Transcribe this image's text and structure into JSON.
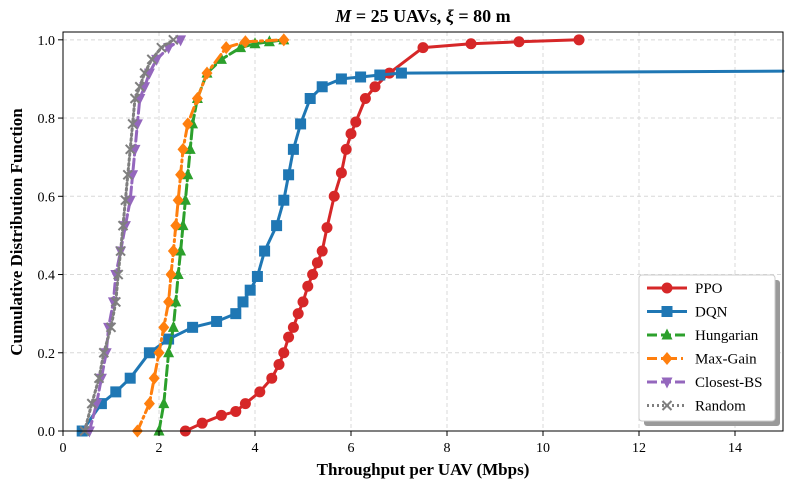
{
  "chart_data": {
    "type": "line",
    "title_math": "M",
    "title_text": " = 25 UAVs, ",
    "title_math2": "ξ",
    "title_text2": " = 80 m",
    "xlabel": "Throughput per UAV (Mbps)",
    "ylabel": "Cumulative Distribution Function",
    "xlim": [
      0,
      15
    ],
    "ylim": [
      0,
      1.02
    ],
    "xticks": [
      "0",
      "2",
      "4",
      "6",
      "8",
      "10",
      "12",
      "14"
    ],
    "yticks": [
      "0.0",
      "0.2",
      "0.4",
      "0.6",
      "0.8",
      "1.0"
    ],
    "grid": true,
    "legend_position": "lower-right",
    "series": [
      {
        "name": "PPO",
        "color": "#d62728",
        "marker": "circle",
        "dash": "solid",
        "x": [
          2.55,
          2.9,
          3.3,
          3.6,
          3.8,
          4.1,
          4.35,
          4.5,
          4.6,
          4.7,
          4.8,
          4.9,
          5.0,
          5.1,
          5.2,
          5.3,
          5.4,
          5.5,
          5.65,
          5.8,
          5.9,
          6.0,
          6.1,
          6.3,
          6.5,
          6.8,
          7.5,
          8.5,
          9.5,
          10.75
        ],
        "y": [
          0.0,
          0.02,
          0.04,
          0.05,
          0.07,
          0.1,
          0.135,
          0.17,
          0.2,
          0.24,
          0.265,
          0.3,
          0.33,
          0.37,
          0.4,
          0.43,
          0.46,
          0.52,
          0.6,
          0.66,
          0.72,
          0.76,
          0.79,
          0.85,
          0.88,
          0.915,
          0.98,
          0.99,
          0.995,
          1.0
        ]
      },
      {
        "name": "DQN",
        "color": "#1f77b4",
        "marker": "square",
        "dash": "solid",
        "x": [
          0.4,
          0.8,
          1.1,
          1.4,
          1.8,
          2.2,
          2.7,
          3.2,
          3.6,
          3.75,
          3.9,
          4.05,
          4.2,
          4.45,
          4.6,
          4.7,
          4.8,
          4.95,
          5.15,
          5.4,
          5.8,
          6.2,
          6.6,
          7.05,
          15.0
        ],
        "y": [
          0.0,
          0.07,
          0.1,
          0.135,
          0.2,
          0.235,
          0.265,
          0.28,
          0.3,
          0.33,
          0.36,
          0.395,
          0.46,
          0.525,
          0.59,
          0.655,
          0.72,
          0.785,
          0.85,
          0.88,
          0.9,
          0.905,
          0.91,
          0.915,
          0.92
        ]
      },
      {
        "name": "Hungarian",
        "color": "#2ca02c",
        "marker": "triangle-up",
        "dash": "dashed",
        "x": [
          2.0,
          2.1,
          2.2,
          2.3,
          2.35,
          2.4,
          2.45,
          2.5,
          2.55,
          2.6,
          2.65,
          2.7,
          2.8,
          3.0,
          3.3,
          3.7,
          4.0,
          4.3,
          4.6
        ],
        "y": [
          0.0,
          0.07,
          0.2,
          0.265,
          0.33,
          0.4,
          0.46,
          0.525,
          0.59,
          0.655,
          0.72,
          0.785,
          0.85,
          0.915,
          0.95,
          0.98,
          0.99,
          0.995,
          1.0
        ]
      },
      {
        "name": "Max-Gain",
        "color": "#ff7f0e",
        "marker": "diamond",
        "dash": "dashdot",
        "x": [
          1.55,
          1.8,
          1.9,
          2.0,
          2.1,
          2.2,
          2.25,
          2.3,
          2.35,
          2.4,
          2.45,
          2.5,
          2.6,
          2.8,
          3.0,
          3.4,
          3.8,
          4.6
        ],
        "y": [
          0.0,
          0.07,
          0.135,
          0.2,
          0.265,
          0.33,
          0.4,
          0.46,
          0.525,
          0.59,
          0.655,
          0.72,
          0.785,
          0.85,
          0.915,
          0.98,
          0.995,
          1.0
        ]
      },
      {
        "name": "Closest-BS",
        "color": "#9467bd",
        "marker": "triangle-down",
        "dash": "dashed",
        "x": [
          0.55,
          0.7,
          0.8,
          0.9,
          0.95,
          1.05,
          1.1,
          1.2,
          1.3,
          1.4,
          1.45,
          1.5,
          1.55,
          1.6,
          1.7,
          1.8,
          1.95,
          2.2,
          2.45
        ],
        "y": [
          0.0,
          0.07,
          0.135,
          0.2,
          0.265,
          0.33,
          0.4,
          0.46,
          0.525,
          0.59,
          0.655,
          0.72,
          0.785,
          0.85,
          0.88,
          0.915,
          0.95,
          0.98,
          1.0
        ]
      },
      {
        "name": "Random",
        "color": "#7f7f7f",
        "marker": "x",
        "dash": "dotted",
        "x": [
          0.45,
          0.6,
          0.75,
          0.85,
          1.0,
          1.1,
          1.15,
          1.2,
          1.25,
          1.3,
          1.35,
          1.4,
          1.45,
          1.5,
          1.6,
          1.7,
          1.85,
          2.05,
          2.3
        ],
        "y": [
          0.0,
          0.07,
          0.135,
          0.2,
          0.265,
          0.33,
          0.4,
          0.46,
          0.525,
          0.59,
          0.655,
          0.72,
          0.785,
          0.85,
          0.88,
          0.915,
          0.95,
          0.98,
          1.0
        ]
      }
    ]
  }
}
